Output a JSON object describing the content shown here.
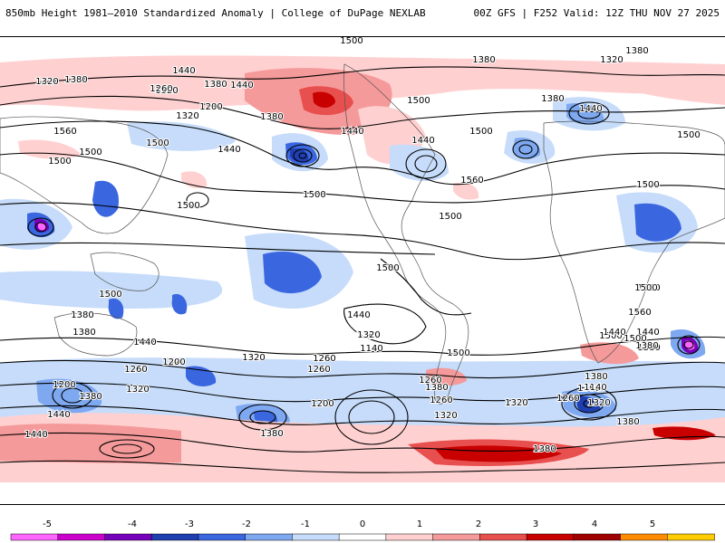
{
  "header": {
    "title_left": "850mb Height 1981–2010 Standardized Anomaly | College of DuPage NEXLAB",
    "title_right": "00Z GFS | F252 Valid: 12Z THU NOV 27 2025"
  },
  "colorbar": {
    "ticks": [
      "-5",
      "-4",
      "-3",
      "-2",
      "-1",
      "0",
      "1",
      "2",
      "3",
      "4",
      "5"
    ],
    "colors": [
      "#ff66ff",
      "#cc00cc",
      "#7700bb",
      "#1f3fb0",
      "#3a66e0",
      "#7ea8f0",
      "#c6dcfa",
      "#ffffff",
      "#ffd0d0",
      "#f59a9a",
      "#e84f4f",
      "#c80000",
      "#a00000",
      "#ff8c00",
      "#ffcc00"
    ]
  },
  "height_labels": [
    {
      "text": "1500"
    },
    {
      "text": "1440"
    },
    {
      "text": "1440"
    },
    {
      "text": "1380"
    },
    {
      "text": "1320"
    },
    {
      "text": "1380"
    },
    {
      "text": "1320"
    },
    {
      "text": "1380"
    },
    {
      "text": "1440"
    },
    {
      "text": "1320"
    },
    {
      "text": "1260"
    },
    {
      "text": "1380"
    },
    {
      "text": "1440"
    },
    {
      "text": "1200"
    },
    {
      "text": "1320"
    },
    {
      "text": "1380"
    },
    {
      "text": "1440"
    },
    {
      "text": "1380"
    },
    {
      "text": "1440"
    },
    {
      "text": "1500"
    },
    {
      "text": "1560"
    },
    {
      "text": "1500"
    },
    {
      "text": "1500"
    },
    {
      "text": "1500"
    },
    {
      "text": "1440"
    },
    {
      "text": "1440"
    },
    {
      "text": "1500"
    },
    {
      "text": "1560"
    },
    {
      "text": "1500"
    },
    {
      "text": "1500"
    },
    {
      "text": "1500"
    },
    {
      "text": "1500"
    },
    {
      "text": "1500"
    },
    {
      "text": "1500"
    },
    {
      "text": "1500"
    },
    {
      "text": "1500"
    },
    {
      "text": "1380"
    },
    {
      "text": "1440"
    },
    {
      "text": "1380"
    },
    {
      "text": "1320"
    },
    {
      "text": "1260"
    },
    {
      "text": "1200"
    },
    {
      "text": "1320"
    },
    {
      "text": "1380"
    },
    {
      "text": "1320"
    },
    {
      "text": "1260"
    },
    {
      "text": "1200"
    },
    {
      "text": "1440"
    },
    {
      "text": "1320"
    },
    {
      "text": "1140"
    },
    {
      "text": "1260"
    },
    {
      "text": "1200"
    },
    {
      "text": "1260"
    },
    {
      "text": "1380"
    },
    {
      "text": "1260"
    },
    {
      "text": "1500"
    },
    {
      "text": "1380"
    },
    {
      "text": "1320"
    },
    {
      "text": "1320"
    },
    {
      "text": "1440"
    },
    {
      "text": "1380"
    },
    {
      "text": "1560"
    },
    {
      "text": "1500"
    },
    {
      "text": "1380"
    },
    {
      "text": "1500"
    },
    {
      "text": "1440"
    },
    {
      "text": "1500"
    },
    {
      "text": "1380"
    },
    {
      "text": "1140"
    },
    {
      "text": "1260"
    },
    {
      "text": "1320"
    },
    {
      "text": "1380"
    },
    {
      "text": "1380"
    },
    {
      "text": "1380"
    },
    {
      "text": "1320"
    },
    {
      "text": "1440"
    },
    {
      "text": "1380"
    },
    {
      "text": "1440"
    }
  ]
}
